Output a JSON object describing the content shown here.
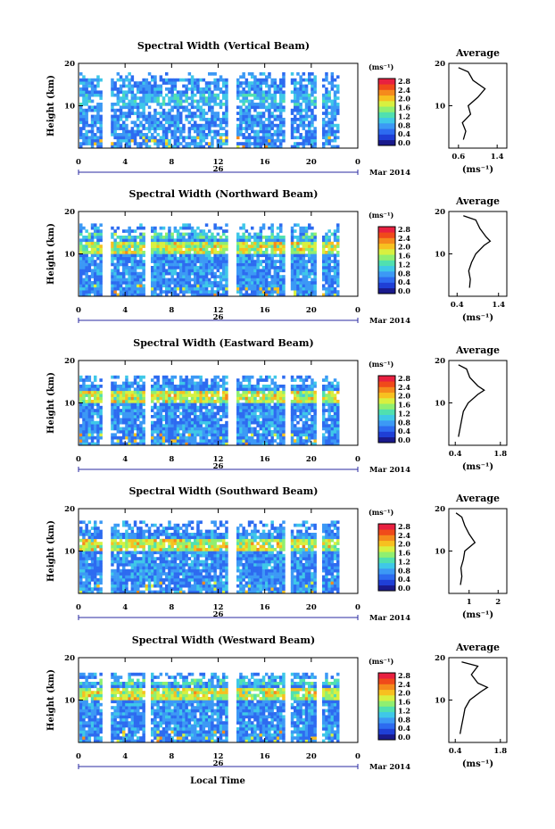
{
  "figure": {
    "date_label": "26",
    "month_label": "Mar 2014",
    "xlabel": "Local Time",
    "colorbar_units": "(ms⁻¹)",
    "colorbar_ticks": [
      "0.0",
      "0.4",
      "0.8",
      "1.2",
      "1.6",
      "2.0",
      "2.4",
      "2.8"
    ],
    "colorbar_colors": [
      "#1a1a8c",
      "#1f3fd6",
      "#2d6bf0",
      "#3c99f5",
      "#3fc8e8",
      "#50e0b0",
      "#90ef70",
      "#d8f040",
      "#f7c020",
      "#f58a1c",
      "#f04a1a",
      "#e82040"
    ]
  },
  "chart_data": [
    {
      "type": "heatmap",
      "title": "Spectral Width (Vertical Beam)",
      "xlabel": "",
      "ylabel": "Height (km)",
      "x_ticks": [
        "0",
        "4",
        "8",
        "12",
        "16",
        "20",
        "0"
      ],
      "y_ticks": [
        "10",
        "20"
      ],
      "xlim": [
        0,
        24
      ],
      "ylim": [
        0,
        20
      ],
      "data_gaps_hours": [
        [
          2.2,
          2.7
        ],
        [
          13.0,
          13.4
        ],
        [
          17.8,
          18.1
        ],
        [
          20.5,
          20.9
        ]
      ],
      "coverage_top_km": 18.5,
      "average_profile": {
        "title": "Average",
        "xlabel": "(ms⁻¹)",
        "x_ticks": [
          "0.6",
          "1.4"
        ],
        "y_ticks": [
          "10",
          "20"
        ],
        "xlim": [
          0.4,
          1.6
        ],
        "ylim": [
          0,
          20
        ],
        "height_km": [
          2,
          4,
          6,
          8,
          10,
          12,
          14,
          16,
          18,
          19
        ],
        "width_ms": [
          0.7,
          0.75,
          0.68,
          0.85,
          0.8,
          1.0,
          1.15,
          0.9,
          0.8,
          0.6
        ]
      }
    },
    {
      "type": "heatmap",
      "title": "Spectral Width (Northward Beam)",
      "xlabel": "",
      "ylabel": "Height (km)",
      "x_ticks": [
        "0",
        "4",
        "8",
        "12",
        "16",
        "20",
        "0"
      ],
      "y_ticks": [
        "10",
        "20"
      ],
      "xlim": [
        0,
        24
      ],
      "ylim": [
        0,
        20
      ],
      "data_gaps_hours": [
        [
          2.2,
          2.7
        ],
        [
          5.8,
          6.1
        ],
        [
          12.9,
          13.4
        ],
        [
          17.8,
          18.1
        ],
        [
          20.5,
          20.9
        ]
      ],
      "coverage_top_km": 17.5,
      "average_profile": {
        "title": "Average",
        "xlabel": "(ms⁻¹)",
        "x_ticks": [
          "0.4",
          "1.4"
        ],
        "y_ticks": [
          "10",
          "20"
        ],
        "xlim": [
          0.2,
          1.6
        ],
        "ylim": [
          0,
          20
        ],
        "height_km": [
          2,
          4,
          6,
          8,
          10,
          12,
          13,
          14,
          16,
          18,
          19
        ],
        "width_ms": [
          0.7,
          0.72,
          0.68,
          0.75,
          0.85,
          1.05,
          1.2,
          1.1,
          0.95,
          0.85,
          0.55
        ]
      }
    },
    {
      "type": "heatmap",
      "title": "Spectral Width (Eastward Beam)",
      "xlabel": "",
      "ylabel": "Height (km)",
      "x_ticks": [
        "0",
        "4",
        "8",
        "12",
        "16",
        "20",
        "0"
      ],
      "y_ticks": [
        "10",
        "20"
      ],
      "xlim": [
        0,
        24
      ],
      "ylim": [
        0,
        20
      ],
      "data_gaps_hours": [
        [
          2.2,
          2.7
        ],
        [
          5.8,
          6.1
        ],
        [
          12.9,
          13.4
        ],
        [
          17.8,
          18.1
        ],
        [
          20.5,
          20.9
        ]
      ],
      "coverage_top_km": 17.0,
      "average_profile": {
        "title": "Average",
        "xlabel": "(ms⁻¹)",
        "x_ticks": [
          "0.4",
          "1.8"
        ],
        "y_ticks": [
          "10",
          "20"
        ],
        "xlim": [
          0.2,
          2.0
        ],
        "ylim": [
          0,
          20
        ],
        "height_km": [
          2,
          4,
          6,
          8,
          10,
          12,
          13,
          14,
          16,
          18,
          19
        ],
        "width_ms": [
          0.5,
          0.55,
          0.6,
          0.65,
          0.8,
          1.1,
          1.3,
          1.1,
          0.85,
          0.75,
          0.5
        ]
      }
    },
    {
      "type": "heatmap",
      "title": "Spectral Width (Southward Beam)",
      "xlabel": "",
      "ylabel": "Height (km)",
      "x_ticks": [
        "0",
        "4",
        "8",
        "12",
        "16",
        "20",
        "0"
      ],
      "y_ticks": [
        "10",
        "20"
      ],
      "xlim": [
        0,
        24
      ],
      "ylim": [
        0,
        20
      ],
      "data_gaps_hours": [
        [
          2.2,
          2.7
        ],
        [
          12.9,
          13.4
        ],
        [
          17.8,
          18.1
        ],
        [
          20.5,
          20.9
        ]
      ],
      "coverage_top_km": 17.5,
      "average_profile": {
        "title": "Average",
        "xlabel": "(ms⁻¹)",
        "x_ticks": [
          "1",
          "2"
        ],
        "y_ticks": [
          "10",
          "20"
        ],
        "xlim": [
          0.3,
          2.3
        ],
        "ylim": [
          0,
          20
        ],
        "height_km": [
          2,
          4,
          6,
          8,
          10,
          12,
          14,
          16,
          18,
          19
        ],
        "width_ms": [
          0.7,
          0.75,
          0.72,
          0.8,
          0.85,
          1.2,
          1.0,
          0.85,
          0.75,
          0.55
        ]
      }
    },
    {
      "type": "heatmap",
      "title": "Spectral Width (Westward Beam)",
      "xlabel": "Local Time",
      "ylabel": "Height (km)",
      "x_ticks": [
        "0",
        "4",
        "8",
        "12",
        "16",
        "20",
        "0"
      ],
      "y_ticks": [
        "10",
        "20"
      ],
      "xlim": [
        0,
        24
      ],
      "ylim": [
        0,
        20
      ],
      "data_gaps_hours": [
        [
          2.2,
          2.7
        ],
        [
          5.8,
          6.1
        ],
        [
          12.9,
          13.4
        ],
        [
          17.8,
          18.1
        ],
        [
          20.5,
          20.9
        ]
      ],
      "coverage_top_km": 17.0,
      "average_profile": {
        "title": "Average",
        "xlabel": "(ms⁻¹)",
        "x_ticks": [
          "0.4",
          "1.8"
        ],
        "y_ticks": [
          "10",
          "20"
        ],
        "xlim": [
          0.2,
          2.0
        ],
        "ylim": [
          0,
          20
        ],
        "height_km": [
          2,
          4,
          6,
          8,
          10,
          12,
          13,
          14,
          16,
          18,
          19
        ],
        "width_ms": [
          0.55,
          0.6,
          0.65,
          0.7,
          0.85,
          1.2,
          1.4,
          1.1,
          0.9,
          1.1,
          0.6
        ]
      }
    }
  ]
}
